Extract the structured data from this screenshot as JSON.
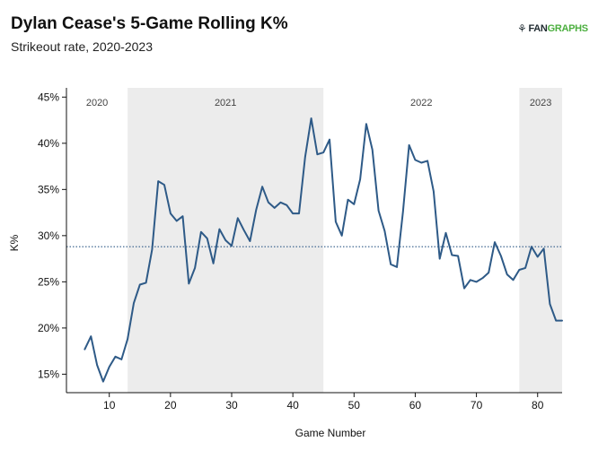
{
  "header": {
    "title": "Dylan Cease's 5-Game Rolling K%",
    "subtitle": "Strikeout rate, 2020-2023"
  },
  "logo": {
    "fan": "FAN",
    "graphs": "GRAPHS",
    "icon": "fangraphs-leaf-icon"
  },
  "colors": {
    "line": "#2e5a87",
    "season_band": "#ececec",
    "reference_line": "#2e5a87",
    "axis": "#111111",
    "logo_green": "#4caf3f"
  },
  "chart_data": {
    "type": "line",
    "title": "Dylan Cease's 5-Game Rolling K%",
    "subtitle": "Strikeout rate, 2020-2023",
    "xlabel": "Game Number",
    "ylabel": "K%",
    "xlim": [
      3,
      84
    ],
    "ylim": [
      13,
      46
    ],
    "x_ticks": [
      10,
      20,
      30,
      40,
      50,
      60,
      70,
      80
    ],
    "y_ticks": [
      15,
      20,
      25,
      30,
      35,
      40,
      45
    ],
    "y_tick_format": "percent",
    "grid": false,
    "reference_line": {
      "y": 28.8,
      "style": "dotted"
    },
    "season_bands": [
      {
        "label": "2020",
        "start": 3,
        "end": 13,
        "shaded": false
      },
      {
        "label": "2021",
        "start": 13,
        "end": 45,
        "shaded": true
      },
      {
        "label": "2022",
        "start": 45,
        "end": 77,
        "shaded": false
      },
      {
        "label": "2023",
        "start": 77,
        "end": 84,
        "shaded": true
      }
    ],
    "series": [
      {
        "x": [
          6,
          7,
          8,
          9,
          10,
          11,
          12,
          13,
          14,
          15,
          16,
          17,
          18,
          19,
          20,
          21,
          22,
          23,
          24,
          25,
          26,
          27,
          28,
          29,
          30,
          31,
          32,
          33,
          34,
          35,
          36,
          37,
          38,
          39,
          40,
          41,
          42,
          43,
          44,
          45,
          46,
          47,
          48,
          49,
          50,
          51,
          52,
          53,
          54,
          55,
          56,
          57,
          58,
          59,
          60,
          61,
          62,
          63,
          64,
          65,
          66,
          67,
          68,
          69,
          70,
          71,
          72,
          73,
          74,
          75,
          76,
          77,
          78,
          79,
          80,
          81,
          82,
          83,
          84
        ],
        "values": [
          17.7,
          19.1,
          16.0,
          14.2,
          15.8,
          16.9,
          16.6,
          18.8,
          22.7,
          24.7,
          24.9,
          28.5,
          35.9,
          35.5,
          32.4,
          31.6,
          32.1,
          24.8,
          26.5,
          30.4,
          29.7,
          27.0,
          30.7,
          29.5,
          28.9,
          31.9,
          30.6,
          29.4,
          32.8,
          35.3,
          33.6,
          33.0,
          33.6,
          33.3,
          32.4,
          32.4,
          38.5,
          42.7,
          38.8,
          39.0,
          40.4,
          31.5,
          30.0,
          33.9,
          33.4,
          36.1,
          42.1,
          39.3,
          32.7,
          30.5,
          26.9,
          26.6,
          32.6,
          39.8,
          38.2,
          37.9,
          38.1,
          34.8,
          27.5,
          30.3,
          27.9,
          27.8,
          24.3,
          25.2,
          25.0,
          25.4,
          26.0,
          29.3,
          27.8,
          25.8,
          25.2,
          26.3,
          26.5,
          28.8,
          27.7,
          28.6,
          22.6,
          20.8,
          20.8
        ]
      }
    ]
  }
}
